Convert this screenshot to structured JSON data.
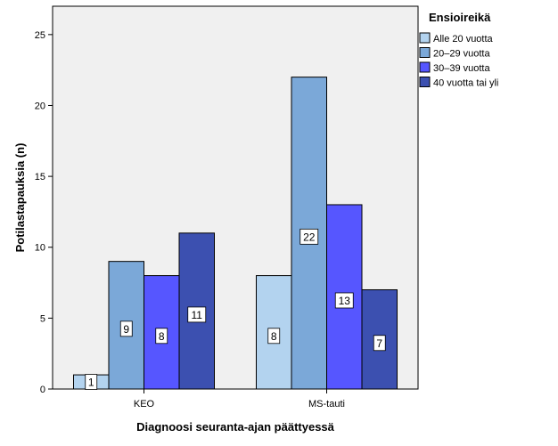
{
  "chart_data": {
    "type": "bar",
    "title": "",
    "xlabel": "Diagnoosi seuranta-ajan päättyessä",
    "ylabel": "Potilastapauksia (n)",
    "categories": [
      "KEO",
      "MS-tauti"
    ],
    "ylim": [
      0,
      27
    ],
    "yticks": [
      0,
      5,
      10,
      15,
      20,
      25
    ],
    "grid": false,
    "legend": {
      "title": "Ensioireikä",
      "position": "right"
    },
    "series": [
      {
        "name": "Alle 20 vuotta",
        "values": [
          1,
          8
        ],
        "color": "#b3d3ef"
      },
      {
        "name": "20–29 vuotta",
        "values": [
          9,
          22
        ],
        "color": "#7ba8d8"
      },
      {
        "name": "30–39 vuotta",
        "values": [
          8,
          13
        ],
        "color": "#5656ff"
      },
      {
        "name": "40 vuotta tai yli",
        "values": [
          11,
          7
        ],
        "color": "#3c50b0"
      }
    ],
    "plot_background": "#f0f0f0"
  }
}
